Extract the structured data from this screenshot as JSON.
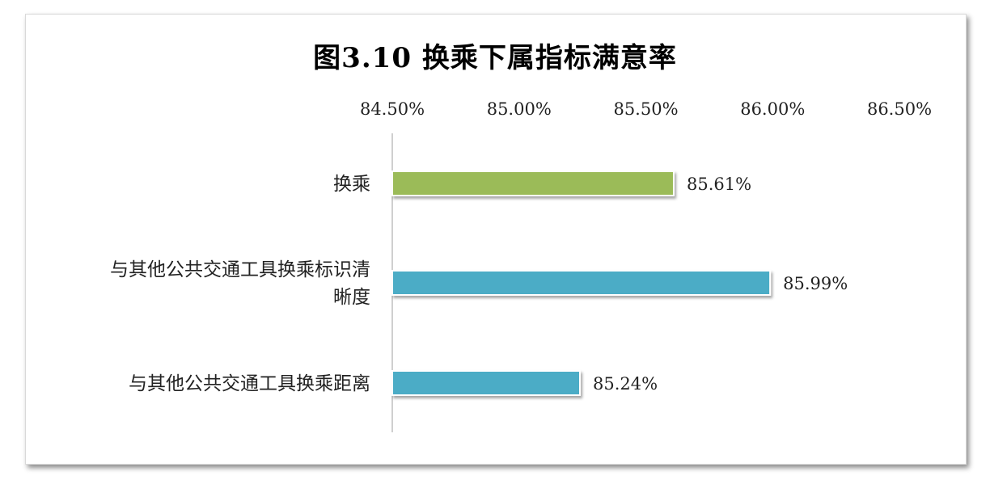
{
  "chart_data": {
    "type": "bar",
    "orientation": "horizontal",
    "title": "图3.10 换乘下属指标满意率",
    "categories": [
      "换乘",
      [
        "与其他公共交通工具换乘标识清",
        "晰度"
      ],
      "与其他公共交通工具换乘距离"
    ],
    "values": [
      85.61,
      85.99,
      85.24
    ],
    "data_labels": [
      "85.61%",
      "85.99%",
      "85.24%"
    ],
    "bar_colors": [
      "#9bbb59",
      "#4bacc6",
      "#4bacc6"
    ],
    "xlim": [
      84.5,
      86.5
    ],
    "ticks": [
      84.5,
      85.0,
      85.5,
      86.0,
      86.5
    ],
    "tick_labels": [
      "84.50%",
      "85.00%",
      "85.50%",
      "86.00%",
      "86.50%"
    ],
    "axis_position": "top",
    "grid": false,
    "legend": "none"
  }
}
